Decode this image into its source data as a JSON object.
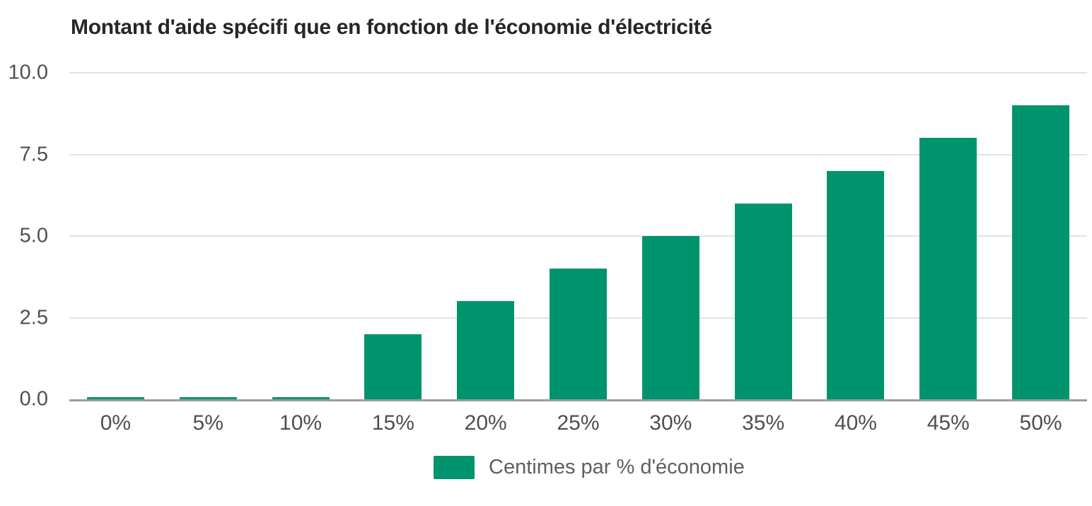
{
  "title": "Montant d'aide spécifi que en fonction de l'économie d'électricité",
  "legend": {
    "label": "Centimes par % d'économie"
  },
  "colors": {
    "bar": "#00946e",
    "gridline": "#e2e2e2",
    "baseline": "#9c9c9c",
    "title_text": "#262626",
    "axis_text": "#4f4f4f",
    "legend_text": "#5f5f5f",
    "background": "#ffffff"
  },
  "chart_data": {
    "type": "bar",
    "title": "Montant d'aide spécifi que en fonction de l'économie d'électricité",
    "categories": [
      "0%",
      "5%",
      "10%",
      "15%",
      "20%",
      "25%",
      "30%",
      "35%",
      "40%",
      "45%",
      "50%"
    ],
    "series": [
      {
        "name": "Centimes par % d'économie",
        "values": [
          0,
          0,
          0,
          2,
          3,
          4,
          5,
          6,
          7,
          8,
          9
        ]
      }
    ],
    "xlabel": "",
    "ylabel": "",
    "ylim": [
      0,
      10
    ],
    "yticks": [
      0,
      2.5,
      5,
      7.5,
      10
    ],
    "ytick_labels": [
      "0.0",
      "2.5",
      "5.0",
      "7.5",
      "10.0"
    ],
    "grid": true,
    "legend_position": "bottom",
    "bar_color": "#00946e"
  }
}
